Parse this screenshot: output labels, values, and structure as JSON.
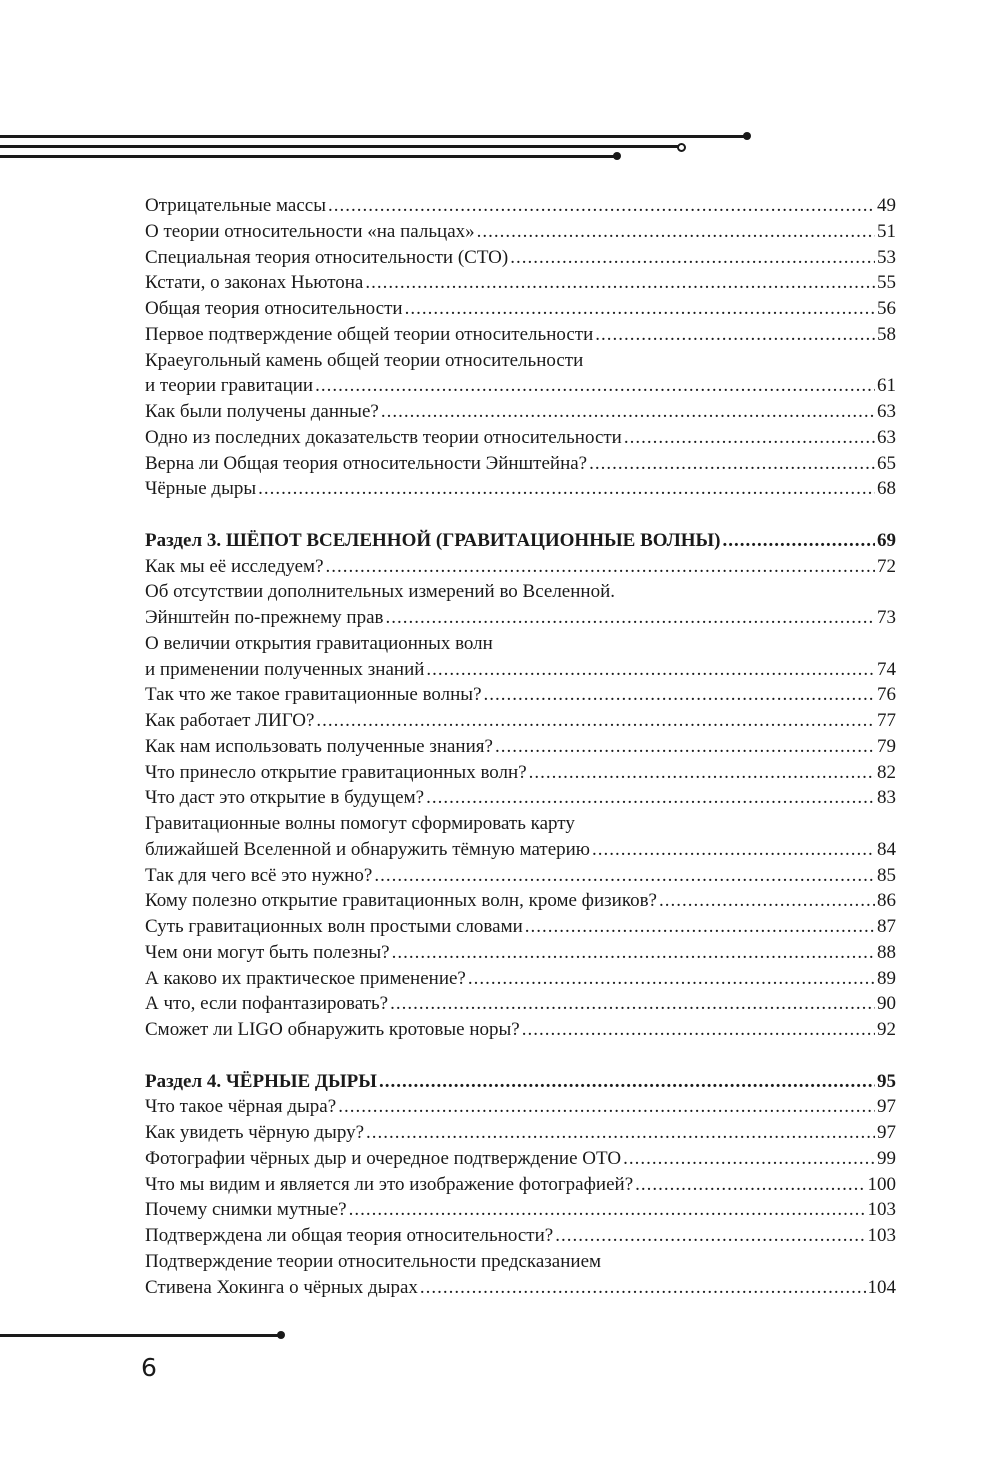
{
  "toc": [
    {
      "lines": [
        "Отрицательные массы"
      ],
      "page": "49"
    },
    {
      "lines": [
        "О теории относительности «на пальцах»"
      ],
      "page": "51"
    },
    {
      "lines": [
        "Специальная теория относительности (СТО)"
      ],
      "page": "53"
    },
    {
      "lines": [
        "Кстати, о законах Ньютона"
      ],
      "page": "55"
    },
    {
      "lines": [
        "Общая теория относительности"
      ],
      "page": "56"
    },
    {
      "lines": [
        "Первое подтверждение общей теории относительности"
      ],
      "page": "58"
    },
    {
      "lines": [
        "Краеугольный камень общей теории относительности",
        "и теории гравитации"
      ],
      "page": "61"
    },
    {
      "lines": [
        "Как были получены данные?"
      ],
      "page": "63"
    },
    {
      "lines": [
        "Одно из последних доказательств теории относительности"
      ],
      "page": "63"
    },
    {
      "lines": [
        "Верна ли Общая теория относительности Эйнштейна?"
      ],
      "page": "65"
    },
    {
      "lines": [
        "Чёрные дыры"
      ],
      "page": "68"
    },
    {
      "gap": true
    },
    {
      "lines": [
        "Раздел 3. ШЁПОТ ВСЕЛЕННОЙ (ГРАВИТАЦИОННЫЕ ВОЛНЫ)"
      ],
      "page": "69",
      "bold": true
    },
    {
      "lines": [
        "Как мы её исследуем?"
      ],
      "page": "72"
    },
    {
      "lines": [
        "Об отсутствии дополнительных измерений во Вселенной.",
        "Эйнштейн по-прежнему прав"
      ],
      "page": "73"
    },
    {
      "lines": [
        "О величии открытия гравитационных волн",
        "и применении полученных знаний"
      ],
      "page": "74"
    },
    {
      "lines": [
        "Так что же такое гравитационные волны?"
      ],
      "page": "76"
    },
    {
      "lines": [
        "Как работает ЛИГО?"
      ],
      "page": "77"
    },
    {
      "lines": [
        "Как нам использовать полученные знания?"
      ],
      "page": "79"
    },
    {
      "lines": [
        "Что принесло открытие гравитационных волн?"
      ],
      "page": "82"
    },
    {
      "lines": [
        "Что даст это открытие в будущем?"
      ],
      "page": "83"
    },
    {
      "lines": [
        "Гравитационные волны помогут сформировать карту",
        "ближайшей Вселенной и обнаружить тёмную материю"
      ],
      "page": "84"
    },
    {
      "lines": [
        "Так для чего всё это нужно?"
      ],
      "page": "85"
    },
    {
      "lines": [
        "Кому полезно открытие гравитационных волн, кроме физиков?"
      ],
      "page": "86"
    },
    {
      "lines": [
        "Суть гравитационных волн простыми словами"
      ],
      "page": "87"
    },
    {
      "lines": [
        "Чем они могут быть полезны?"
      ],
      "page": "88"
    },
    {
      "lines": [
        "А каково их практическое применение?"
      ],
      "page": "89"
    },
    {
      "lines": [
        "А что, если пофантазировать?"
      ],
      "page": "90"
    },
    {
      "lines": [
        "Сможет ли LIGO обнаружить кротовые норы?"
      ],
      "page": "92"
    },
    {
      "gap": true
    },
    {
      "lines": [
        "Раздел 4. ЧЁРНЫЕ ДЫРЫ"
      ],
      "page": "95",
      "bold": true
    },
    {
      "lines": [
        "Что такое чёрная дыра?"
      ],
      "page": "97"
    },
    {
      "lines": [
        "Как увидеть чёрную дыру?"
      ],
      "page": "97"
    },
    {
      "lines": [
        "Фотографии чёрных дыр и очередное подтверждение ОТО"
      ],
      "page": "99"
    },
    {
      "lines": [
        "Что мы видим и является ли это изображение фотографией?"
      ],
      "page": "100"
    },
    {
      "lines": [
        "Почему снимки мутные?"
      ],
      "page": "103"
    },
    {
      "lines": [
        "Подтверждена ли общая теория относительности?"
      ],
      "page": "103"
    },
    {
      "lines": [
        "Подтверждение теории относительности предсказанием",
        "Стивена Хокинга о чёрных дырах"
      ],
      "page": "104"
    }
  ],
  "page_number": "6"
}
